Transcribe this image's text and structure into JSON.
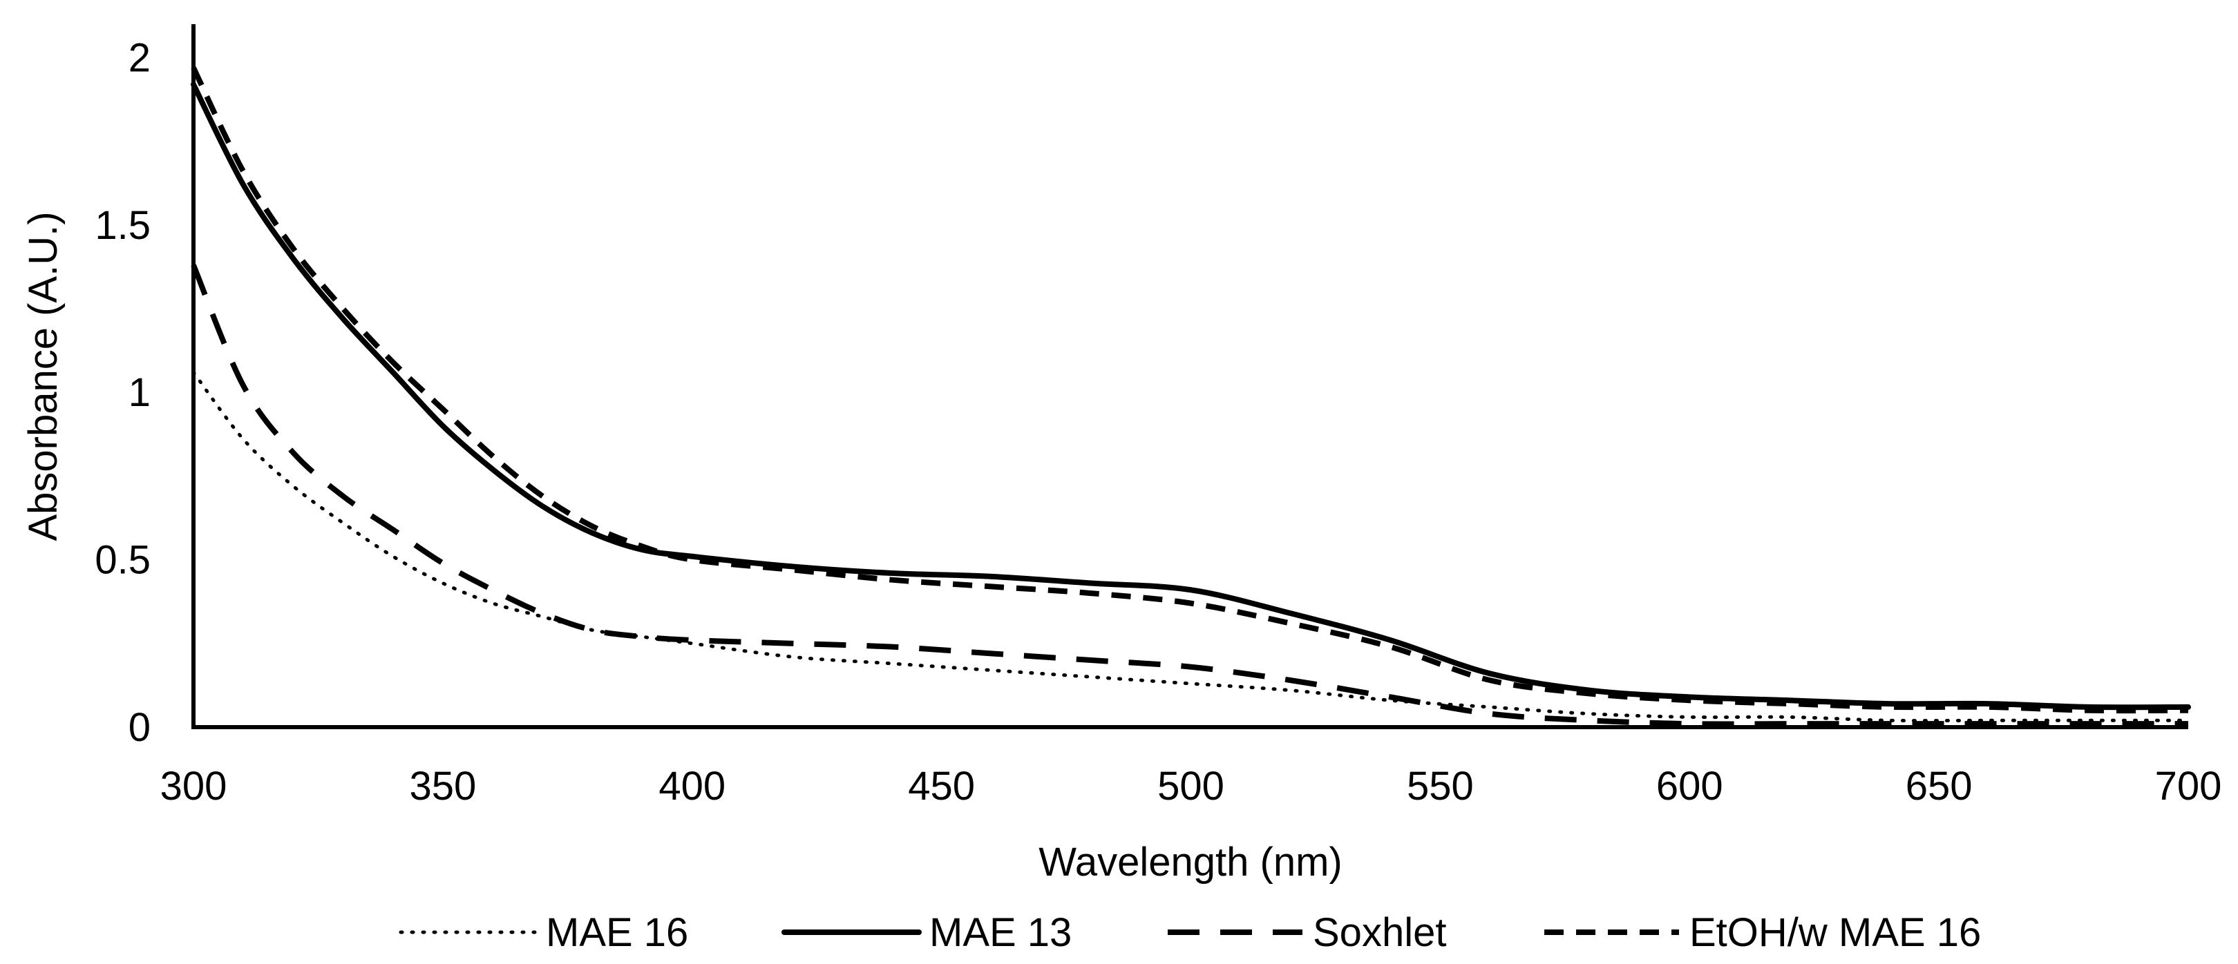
{
  "chart_data": {
    "type": "line",
    "title": "",
    "xlabel": "Wavelength (nm)",
    "ylabel": "Absorbance (A.U.)",
    "xlim": [
      300,
      700
    ],
    "ylim": [
      0,
      2.1
    ],
    "xticks": [
      300,
      350,
      400,
      450,
      500,
      550,
      600,
      650,
      700
    ],
    "yticks": [
      0,
      0.5,
      1,
      1.5,
      2
    ],
    "xtick_labels": [
      "300",
      "350",
      "400",
      "450",
      "500",
      "550",
      "600",
      "650",
      "700"
    ],
    "ytick_labels": [
      "0",
      "0.5",
      "1",
      "1.5",
      "2"
    ],
    "grid": false,
    "legend_position": "bottom",
    "x": [
      300,
      310,
      320,
      330,
      340,
      350,
      360,
      370,
      380,
      390,
      400,
      420,
      440,
      460,
      480,
      500,
      520,
      540,
      560,
      580,
      600,
      620,
      640,
      660,
      680,
      700
    ],
    "series": [
      {
        "name": "MAE 16",
        "style": "dotted",
        "color": "#000000",
        "values": [
          1.06,
          0.86,
          0.72,
          0.61,
          0.51,
          0.43,
          0.37,
          0.33,
          0.29,
          0.27,
          0.25,
          0.21,
          0.19,
          0.17,
          0.15,
          0.13,
          0.11,
          0.08,
          0.06,
          0.04,
          0.03,
          0.03,
          0.02,
          0.02,
          0.02,
          0.02
        ]
      },
      {
        "name": "MAE 13",
        "style": "solid",
        "color": "#000000",
        "values": [
          1.92,
          1.62,
          1.4,
          1.22,
          1.06,
          0.9,
          0.77,
          0.66,
          0.58,
          0.53,
          0.51,
          0.48,
          0.46,
          0.45,
          0.43,
          0.41,
          0.34,
          0.26,
          0.16,
          0.11,
          0.09,
          0.08,
          0.07,
          0.07,
          0.06,
          0.06
        ]
      },
      {
        "name": "Soxhlet",
        "style": "long-dash",
        "color": "#000000",
        "values": [
          1.38,
          1.02,
          0.82,
          0.69,
          0.59,
          0.49,
          0.41,
          0.34,
          0.29,
          0.27,
          0.26,
          0.25,
          0.24,
          0.22,
          0.2,
          0.18,
          0.14,
          0.09,
          0.04,
          0.02,
          0.01,
          0.01,
          0.01,
          0.01,
          0.01,
          0.01
        ]
      },
      {
        "name": "EtOH/w MAE 16",
        "style": "short-dash",
        "color": "#000000",
        "values": [
          1.97,
          1.66,
          1.43,
          1.25,
          1.09,
          0.95,
          0.81,
          0.69,
          0.6,
          0.54,
          0.5,
          0.47,
          0.44,
          0.42,
          0.4,
          0.37,
          0.31,
          0.24,
          0.14,
          0.1,
          0.08,
          0.07,
          0.06,
          0.06,
          0.05,
          0.05
        ]
      }
    ]
  }
}
